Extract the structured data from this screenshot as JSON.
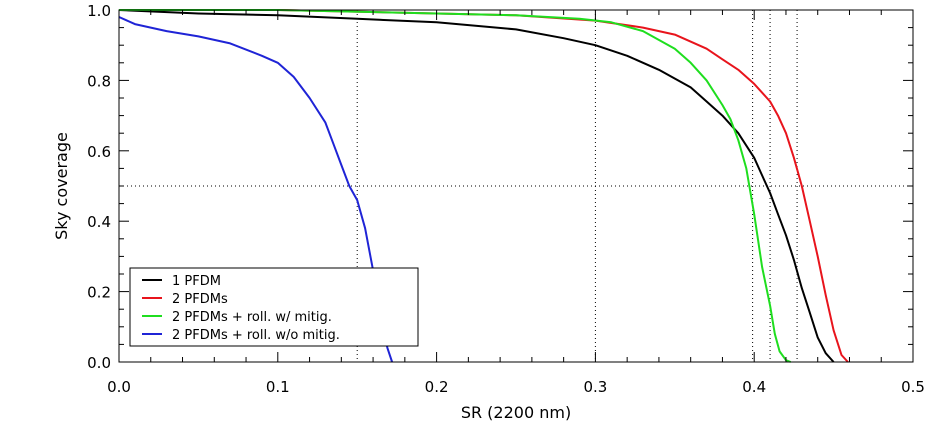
{
  "chart_data": {
    "type": "line",
    "xlabel": "SR (2200 nm)",
    "ylabel": "Sky coverage",
    "xlim": [
      0.0,
      0.5
    ],
    "ylim": [
      0.0,
      1.0
    ],
    "x_ticks": [
      0.0,
      0.1,
      0.2,
      0.3,
      0.4,
      0.5
    ],
    "x_tick_labels": [
      "0.0",
      "0.1",
      "0.2",
      "0.3",
      "0.4",
      "0.5"
    ],
    "y_ticks": [
      0.0,
      0.2,
      0.4,
      0.6,
      0.8,
      1.0
    ],
    "y_tick_labels": [
      "0.0",
      "0.2",
      "0.4",
      "0.6",
      "0.8",
      "1.0"
    ],
    "reference_lines": {
      "horizontal": [
        0.5
      ],
      "vertical": [
        0.15,
        0.3,
        0.399,
        0.41,
        0.427
      ]
    },
    "legend_position": "bottom-left",
    "series": [
      {
        "name": "1 PFDM",
        "color": "#000000",
        "x": [
          0.0,
          0.05,
          0.1,
          0.15,
          0.2,
          0.25,
          0.28,
          0.3,
          0.32,
          0.34,
          0.36,
          0.37,
          0.38,
          0.39,
          0.4,
          0.405,
          0.41,
          0.415,
          0.42,
          0.425,
          0.43,
          0.435,
          0.44,
          0.445,
          0.45
        ],
        "y": [
          1.0,
          0.99,
          0.985,
          0.975,
          0.965,
          0.945,
          0.92,
          0.9,
          0.87,
          0.83,
          0.78,
          0.74,
          0.7,
          0.65,
          0.58,
          0.53,
          0.48,
          0.42,
          0.36,
          0.29,
          0.21,
          0.14,
          0.07,
          0.025,
          0.0
        ]
      },
      {
        "name": "2 PFDMs",
        "color": "#e8141c",
        "x": [
          0.0,
          0.1,
          0.2,
          0.25,
          0.3,
          0.33,
          0.35,
          0.37,
          0.38,
          0.39,
          0.4,
          0.41,
          0.415,
          0.42,
          0.425,
          0.43,
          0.435,
          0.44,
          0.445,
          0.45,
          0.455,
          0.459
        ],
        "y": [
          1.0,
          1.0,
          0.99,
          0.985,
          0.97,
          0.95,
          0.93,
          0.89,
          0.86,
          0.83,
          0.79,
          0.74,
          0.7,
          0.65,
          0.58,
          0.5,
          0.4,
          0.3,
          0.19,
          0.09,
          0.02,
          0.0
        ]
      },
      {
        "name": "2 PFDMs + roll. w/ mitig.",
        "color": "#1fde1f",
        "x": [
          0.0,
          0.1,
          0.2,
          0.25,
          0.29,
          0.31,
          0.33,
          0.35,
          0.36,
          0.37,
          0.38,
          0.385,
          0.39,
          0.395,
          0.4,
          0.405,
          0.41,
          0.413,
          0.416,
          0.42,
          0.423
        ],
        "y": [
          1.0,
          1.0,
          0.99,
          0.985,
          0.975,
          0.965,
          0.94,
          0.89,
          0.85,
          0.8,
          0.73,
          0.69,
          0.63,
          0.55,
          0.42,
          0.27,
          0.16,
          0.08,
          0.03,
          0.005,
          0.0
        ]
      },
      {
        "name": "2 PFDMs + roll. w/o mitig.",
        "color": "#1f24d6",
        "x": [
          0.0,
          0.01,
          0.03,
          0.05,
          0.07,
          0.09,
          0.1,
          0.11,
          0.12,
          0.13,
          0.135,
          0.14,
          0.145,
          0.15,
          0.155,
          0.16,
          0.163,
          0.166,
          0.169,
          0.172
        ],
        "y": [
          0.98,
          0.96,
          0.94,
          0.925,
          0.905,
          0.87,
          0.85,
          0.81,
          0.75,
          0.68,
          0.62,
          0.56,
          0.5,
          0.46,
          0.38,
          0.26,
          0.18,
          0.1,
          0.04,
          0.0
        ]
      }
    ]
  }
}
